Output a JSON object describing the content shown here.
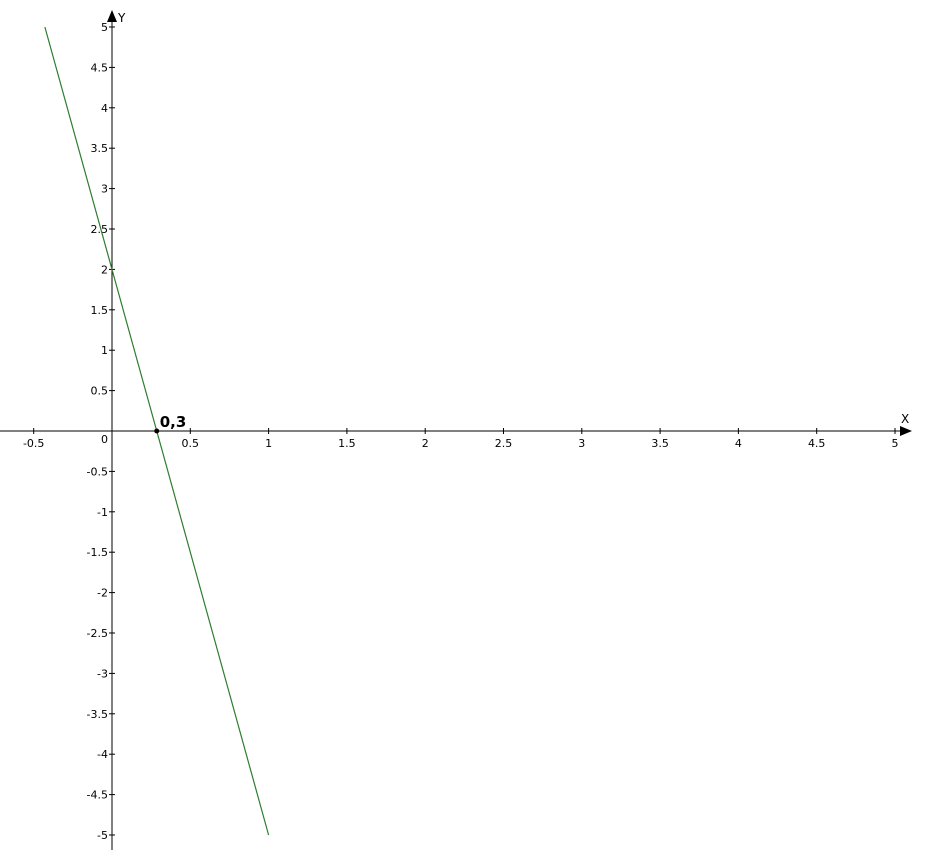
{
  "chart_data": {
    "type": "line",
    "title": "",
    "xlabel": "X",
    "ylabel": "Y",
    "xlim": [
      -0.7,
      5.1
    ],
    "ylim": [
      -5.2,
      5.3
    ],
    "grid": false,
    "x_ticks": [
      "-0.5",
      "0.5",
      "1",
      "1.5",
      "2",
      "2.5",
      "3",
      "3.5",
      "4",
      "4.5",
      "5"
    ],
    "y_ticks": [
      "5",
      "4.5",
      "4",
      "3.5",
      "3",
      "2.5",
      "2",
      "1.5",
      "1",
      "0.5",
      "-0.5",
      "-1",
      "-1.5",
      "-2",
      "-2.5",
      "-3",
      "-3.5",
      "-4",
      "-4.5",
      "-5"
    ],
    "origin_label": "0",
    "series": [
      {
        "x": [
          -0.4286,
          1
        ],
        "y": [
          5,
          -5
        ],
        "color": "#2e7d2e"
      }
    ],
    "points": [
      {
        "x": 0.2857,
        "y": 0,
        "label": "0,3"
      }
    ]
  }
}
